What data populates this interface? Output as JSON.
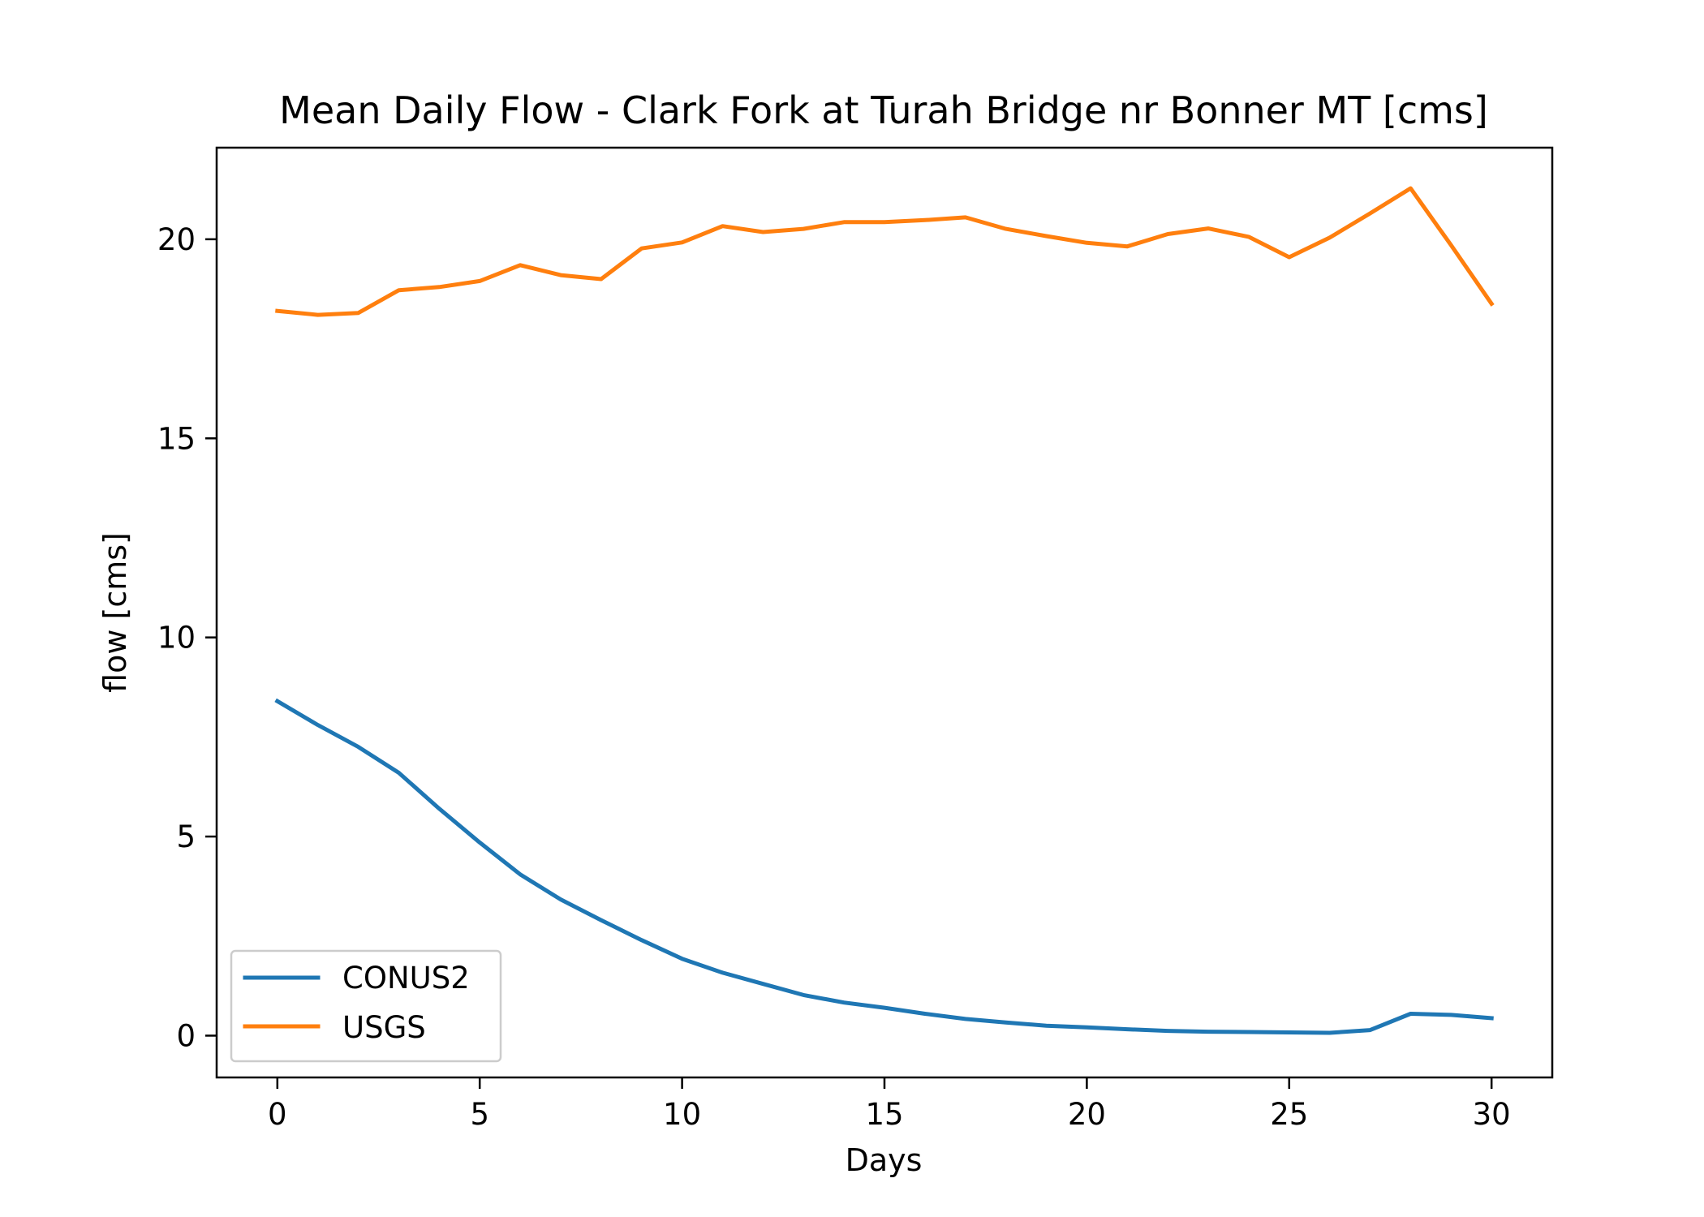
{
  "chart_data": {
    "type": "line",
    "title": "Mean Daily Flow - Clark Fork at Turah Bridge nr Bonner MT [cms]",
    "xlabel": "Days",
    "ylabel": "flow [cms]",
    "xlim": [
      -1.5,
      31.5
    ],
    "ylim": [
      -1.05,
      22.3
    ],
    "xticks": [
      0,
      5,
      10,
      15,
      20,
      25,
      30
    ],
    "yticks": [
      0,
      5,
      10,
      15,
      20
    ],
    "grid": false,
    "legend_position": "lower-left",
    "x": [
      0,
      1,
      2,
      3,
      4,
      5,
      6,
      7,
      8,
      9,
      10,
      11,
      12,
      13,
      14,
      15,
      16,
      17,
      18,
      19,
      20,
      21,
      22,
      23,
      24,
      25,
      26,
      27,
      28,
      29,
      30
    ],
    "series": [
      {
        "name": "CONUS2",
        "color": "#1f77b4",
        "values": [
          8.4,
          7.8,
          7.25,
          6.6,
          5.7,
          4.85,
          4.05,
          3.42,
          2.9,
          2.4,
          1.93,
          1.58,
          1.3,
          1.02,
          0.83,
          0.7,
          0.55,
          0.42,
          0.33,
          0.25,
          0.21,
          0.16,
          0.12,
          0.1,
          0.09,
          0.08,
          0.07,
          0.14,
          0.55,
          0.52,
          0.44
        ]
      },
      {
        "name": "USGS",
        "color": "#ff7f0e",
        "values": [
          18.2,
          18.1,
          18.15,
          18.72,
          18.8,
          18.95,
          19.35,
          19.1,
          19.0,
          19.77,
          19.92,
          20.33,
          20.18,
          20.26,
          20.43,
          20.43,
          20.48,
          20.55,
          20.26,
          20.08,
          19.91,
          19.82,
          20.13,
          20.27,
          20.06,
          19.55,
          20.04,
          20.65,
          21.28,
          19.85,
          18.38
        ]
      }
    ]
  }
}
